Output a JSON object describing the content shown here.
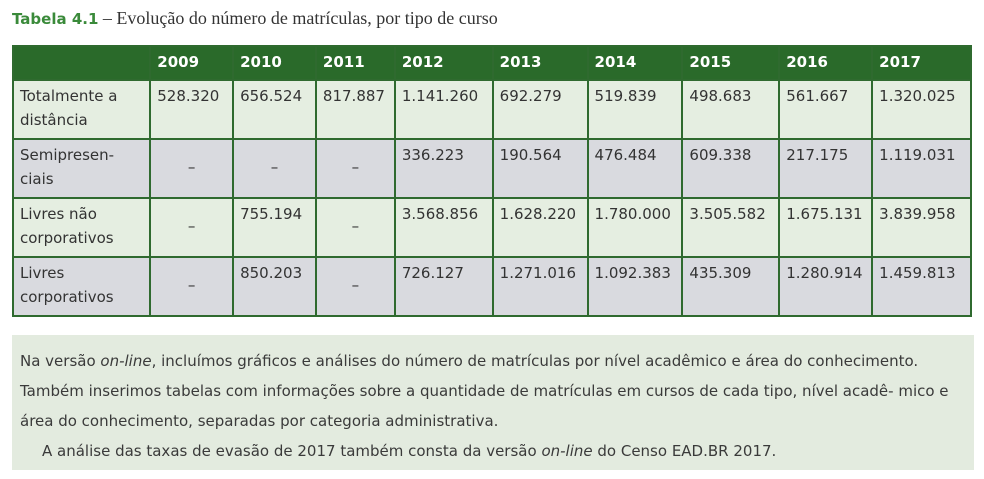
{
  "title": {
    "label": "Tabela 4.1",
    "text": " – Evolução do número de matrículas, por tipo de curso"
  },
  "table": {
    "header": [
      "2009",
      "2010",
      "2011",
      "2012",
      "2013",
      "2014",
      "2015",
      "2016",
      "2017"
    ],
    "rows": [
      [
        "Totalmente a distância",
        "528.320",
        "656.524",
        "817.887",
        "1.141.260",
        "692.279",
        "519.839",
        "498.683",
        "561.667",
        "1.320.025"
      ],
      [
        "Semipresen- ciais",
        "–",
        "–",
        "–",
        "336.223",
        "190.564",
        "476.484",
        "609.338",
        "217.175",
        "1.119.031"
      ],
      [
        "Livres não corporativos",
        "–",
        "755.194",
        "–",
        "3.568.856",
        "1.628.220",
        "1.780.000",
        "3.505.582",
        "1.675.131",
        "3.839.958"
      ],
      [
        "Livres corporativos",
        "–",
        "850.203",
        "–",
        "726.127",
        "1.271.016",
        "1.092.383",
        "435.309",
        "1.280.914",
        "1.459.813"
      ]
    ]
  },
  "note": {
    "paragraphs": [
      [
        {
          "text": "Na versão "
        },
        {
          "text": "on-line",
          "italic": true
        },
        {
          "text": ", incluímos gráficos e análises do número de matrículas por nível acadêmico e área do conhecimento. Também inserimos tabelas com informações sobre a quantidade de matrículas em cursos de cada tipo, nível acadê- mico e área do conhecimento, separadas por categoria administrativa."
        }
      ],
      [
        {
          "text": "A análise das taxas de evasão de 2017 também consta da versão "
        },
        {
          "text": "on-line",
          "italic": true
        },
        {
          "text": " do Censo EAD.BR 2017."
        }
      ]
    ]
  }
}
